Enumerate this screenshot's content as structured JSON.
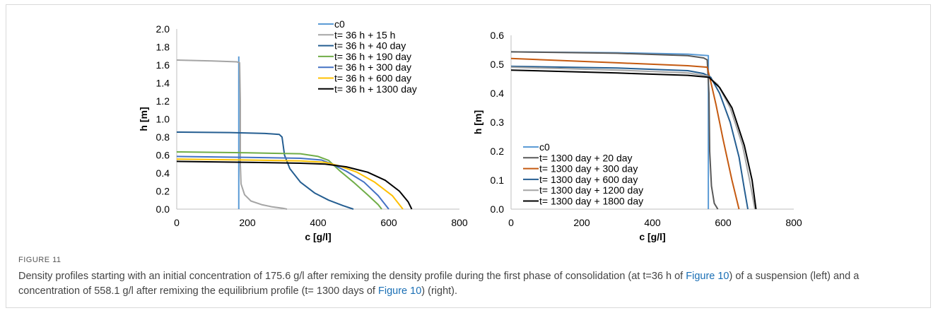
{
  "figure": {
    "label": "FIGURE 11",
    "caption_parts": [
      {
        "text": "Density profiles starting with an initial concentration of 175.6 g/l after remixing the density profile during the first phase of consolidation (at t=36 h of ",
        "ref": false
      },
      {
        "text": "Figure 10",
        "ref": true
      },
      {
        "text": ") of a suspension (left) and a concentration of 558.1 g/l after remixing the equilibrium profile (t= 1300 days of ",
        "ref": false
      },
      {
        "text": "Figure 10",
        "ref": true
      },
      {
        "text": ") (right).",
        "ref": false
      }
    ]
  },
  "chart_data": [
    {
      "type": "line",
      "xlabel": "c [g/l]",
      "ylabel": "h [m]",
      "xlim": [
        0,
        800
      ],
      "ylim": [
        0,
        2.0
      ],
      "xticks": [
        0,
        200,
        400,
        600,
        800
      ],
      "xtick_labels": [
        "0",
        "200",
        "400",
        "600",
        "800"
      ],
      "yticks": [
        0,
        0.2,
        0.4,
        0.6,
        0.8,
        1.0,
        1.2,
        1.4,
        1.6,
        1.8,
        2.0
      ],
      "ytick_labels": [
        "0.0",
        "0.2",
        "0.4",
        "0.6",
        "0.8",
        "1.0",
        "1.2",
        "1.4",
        "1.6",
        "1.8",
        "2.0"
      ],
      "grid": false,
      "legend_position": "top-right",
      "series": [
        {
          "name": "c0",
          "color": "#5b9bd5",
          "points": [
            [
              175.6,
              1.695
            ],
            [
              175.6,
              0.0
            ]
          ]
        },
        {
          "name": "t= 36 h + 15 h",
          "color": "#a5a5a5",
          "points": [
            [
              0,
              1.655
            ],
            [
              100,
              1.645
            ],
            [
              170,
              1.635
            ],
            [
              178,
              1.625
            ],
            [
              180,
              1.2
            ],
            [
              180,
              0.5
            ],
            [
              182,
              0.28
            ],
            [
              192,
              0.16
            ],
            [
              210,
              0.09
            ],
            [
              240,
              0.05
            ],
            [
              270,
              0.025
            ],
            [
              300,
              0.01
            ],
            [
              312,
              0.0
            ]
          ]
        },
        {
          "name": "t= 36 h + 40 day",
          "color": "#255e91",
          "points": [
            [
              0,
              0.855
            ],
            [
              150,
              0.85
            ],
            [
              250,
              0.84
            ],
            [
              290,
              0.83
            ],
            [
              298,
              0.8
            ],
            [
              305,
              0.6
            ],
            [
              320,
              0.45
            ],
            [
              350,
              0.3
            ],
            [
              390,
              0.18
            ],
            [
              430,
              0.1
            ],
            [
              470,
              0.04
            ],
            [
              500,
              0.0
            ]
          ]
        },
        {
          "name": "t= 36 h + 190 day",
          "color": "#70ad47",
          "points": [
            [
              0,
              0.635
            ],
            [
              200,
              0.625
            ],
            [
              350,
              0.615
            ],
            [
              400,
              0.585
            ],
            [
              430,
              0.54
            ],
            [
              460,
              0.43
            ],
            [
              500,
              0.3
            ],
            [
              540,
              0.16
            ],
            [
              570,
              0.05
            ],
            [
              580,
              0.0
            ]
          ]
        },
        {
          "name": "t= 36 h + 300 day",
          "color": "#4472c4",
          "points": [
            [
              0,
              0.585
            ],
            [
              200,
              0.575
            ],
            [
              350,
              0.565
            ],
            [
              410,
              0.545
            ],
            [
              440,
              0.5
            ],
            [
              480,
              0.42
            ],
            [
              530,
              0.3
            ],
            [
              570,
              0.15
            ],
            [
              600,
              0.0
            ]
          ]
        },
        {
          "name": "t= 36 h + 600 day",
          "color": "#ffc000",
          "points": [
            [
              0,
              0.555
            ],
            [
              200,
              0.545
            ],
            [
              350,
              0.535
            ],
            [
              420,
              0.52
            ],
            [
              460,
              0.48
            ],
            [
              510,
              0.41
            ],
            [
              560,
              0.3
            ],
            [
              610,
              0.15
            ],
            [
              640,
              0.0
            ]
          ]
        },
        {
          "name": "t= 36 h + 1300 day",
          "color": "#000000",
          "points": [
            [
              0,
              0.53
            ],
            [
              200,
              0.52
            ],
            [
              350,
              0.51
            ],
            [
              420,
              0.5
            ],
            [
              480,
              0.47
            ],
            [
              540,
              0.41
            ],
            [
              590,
              0.32
            ],
            [
              630,
              0.2
            ],
            [
              655,
              0.08
            ],
            [
              665,
              0.0
            ]
          ]
        }
      ]
    },
    {
      "type": "line",
      "xlabel": "c [g/l]",
      "ylabel": "h [m]",
      "xlim": [
        0,
        800
      ],
      "ylim": [
        0,
        0.6
      ],
      "xticks": [
        0,
        200,
        400,
        600,
        800
      ],
      "xtick_labels": [
        "0",
        "200",
        "400",
        "600",
        "800"
      ],
      "yticks": [
        0,
        0.1,
        0.2,
        0.3,
        0.4,
        0.5,
        0.6
      ],
      "ytick_labels": [
        "0.0",
        "0.1",
        "0.2",
        "0.3",
        "0.4",
        "0.5",
        "0.6"
      ],
      "grid": false,
      "legend_position": "bottom-left",
      "series": [
        {
          "name": "c0",
          "color": "#5b9bd5",
          "points": [
            [
              0,
              0.543
            ],
            [
              300,
              0.54
            ],
            [
              500,
              0.535
            ],
            [
              558.1,
              0.53
            ],
            [
              558.1,
              0.0
            ]
          ]
        },
        {
          "name": "t= 1300 day + 20 day",
          "color": "#595959",
          "points": [
            [
              0,
              0.543
            ],
            [
              300,
              0.538
            ],
            [
              500,
              0.53
            ],
            [
              545,
              0.522
            ],
            [
              555,
              0.515
            ],
            [
              560,
              0.4
            ],
            [
              562,
              0.2
            ],
            [
              567,
              0.08
            ],
            [
              575,
              0.02
            ],
            [
              585,
              0.0
            ]
          ]
        },
        {
          "name": "t= 1300 day + 300 day",
          "color": "#c55a11",
          "points": [
            [
              0,
              0.52
            ],
            [
              300,
              0.505
            ],
            [
              500,
              0.495
            ],
            [
              555,
              0.49
            ],
            [
              565,
              0.44
            ],
            [
              580,
              0.36
            ],
            [
              600,
              0.24
            ],
            [
              625,
              0.1
            ],
            [
              645,
              0.0
            ]
          ]
        },
        {
          "name": "t= 1300 day + 600 day",
          "color": "#255e91",
          "points": [
            [
              0,
              0.493
            ],
            [
              300,
              0.487
            ],
            [
              500,
              0.478
            ],
            [
              545,
              0.468
            ],
            [
              565,
              0.455
            ],
            [
              590,
              0.4
            ],
            [
              620,
              0.3
            ],
            [
              645,
              0.18
            ],
            [
              660,
              0.07
            ],
            [
              670,
              0.0
            ]
          ]
        },
        {
          "name": "t= 1300 day + 1200 day",
          "color": "#a5a5a5",
          "points": [
            [
              0,
              0.49
            ],
            [
              300,
              0.48
            ],
            [
              500,
              0.47
            ],
            [
              555,
              0.46
            ],
            [
              585,
              0.43
            ],
            [
              620,
              0.35
            ],
            [
              655,
              0.22
            ],
            [
              675,
              0.1
            ],
            [
              690,
              0.0
            ]
          ]
        },
        {
          "name": "t= 1300 day + 1800 day",
          "color": "#000000",
          "points": [
            [
              0,
              0.48
            ],
            [
              300,
              0.47
            ],
            [
              500,
              0.462
            ],
            [
              560,
              0.455
            ],
            [
              590,
              0.42
            ],
            [
              625,
              0.35
            ],
            [
              660,
              0.22
            ],
            [
              682,
              0.1
            ],
            [
              693,
              0.0
            ]
          ]
        }
      ]
    }
  ]
}
